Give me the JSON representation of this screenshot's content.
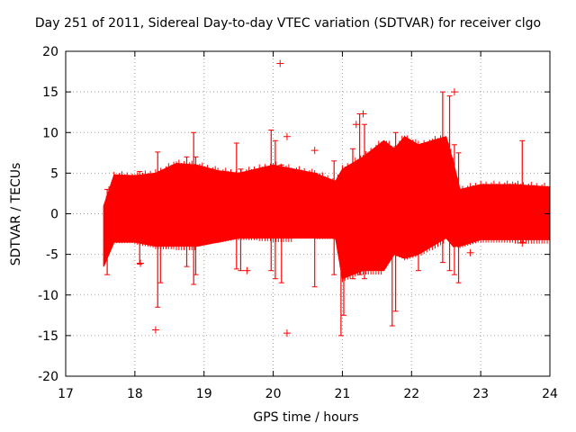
{
  "chart_data": {
    "type": "scatter",
    "title": "Day 251 of 2011, Sidereal Day-to-day VTEC variation (SDTVAR) for receiver clgo",
    "xlabel": "GPS time / hours",
    "ylabel": "SDTVAR / TECUs",
    "xlim": [
      17,
      24
    ],
    "ylim": [
      -20,
      20
    ],
    "x_ticks": [
      17,
      18,
      19,
      20,
      21,
      22,
      23,
      24
    ],
    "y_ticks": [
      -20,
      -15,
      -10,
      -5,
      0,
      5,
      10,
      15,
      20
    ],
    "x_tick_labels": [
      "17",
      "18",
      "19",
      "20",
      "21",
      "22",
      "23",
      "24"
    ],
    "y_tick_labels": [
      "-20",
      "-15",
      "-10",
      "-5",
      "0",
      "5",
      "10",
      "15",
      "20"
    ],
    "grid": true,
    "series_color": "#ff0000",
    "envelope": {
      "x": [
        17.55,
        17.7,
        18.0,
        18.3,
        18.6,
        18.9,
        19.2,
        19.5,
        19.8,
        20.0,
        20.3,
        20.6,
        20.9,
        21.0,
        21.3,
        21.6,
        21.75,
        21.9,
        22.1,
        22.3,
        22.5,
        22.6,
        22.7,
        23.0,
        23.5,
        24.0
      ],
      "upper": [
        1.0,
        4.8,
        4.7,
        5.0,
        6.2,
        6.0,
        5.3,
        5.0,
        5.6,
        6.0,
        5.5,
        5.0,
        4.0,
        5.5,
        7.0,
        9.0,
        8.0,
        9.5,
        8.5,
        9.0,
        9.5,
        6.5,
        3.0,
        3.6,
        3.6,
        3.3
      ],
      "lower": [
        -6.5,
        -3.5,
        -3.5,
        -4.0,
        -4.0,
        -4.0,
        -3.5,
        -3.0,
        -3.0,
        -3.0,
        -3.0,
        -3.0,
        -3.0,
        -8.0,
        -7.0,
        -7.0,
        -5.0,
        -5.5,
        -5.0,
        -4.0,
        -3.0,
        -4.0,
        -4.0,
        -3.2,
        -3.2,
        -3.2
      ]
    },
    "spikes": [
      {
        "x": 17.6,
        "lo": -7.5,
        "hi": 3.0
      },
      {
        "x": 18.07,
        "lo": -6.2,
        "hi": 5.2
      },
      {
        "x": 18.33,
        "lo": -11.5,
        "hi": 7.6
      },
      {
        "x": 18.37,
        "lo": -8.5,
        "hi": 5.0
      },
      {
        "x": 18.75,
        "lo": -6.5,
        "hi": 7.0
      },
      {
        "x": 18.85,
        "lo": -8.7,
        "hi": 10.0
      },
      {
        "x": 18.88,
        "lo": -7.5,
        "hi": 7.0
      },
      {
        "x": 19.47,
        "lo": -6.8,
        "hi": 8.7
      },
      {
        "x": 19.53,
        "lo": -7.0,
        "hi": 5.5
      },
      {
        "x": 19.97,
        "lo": -7.0,
        "hi": 10.3
      },
      {
        "x": 20.03,
        "lo": -8.0,
        "hi": 9.0
      },
      {
        "x": 20.12,
        "lo": -8.5,
        "hi": 6.0
      },
      {
        "x": 20.6,
        "lo": -9.0,
        "hi": 5.0
      },
      {
        "x": 20.88,
        "lo": -7.5,
        "hi": 6.5
      },
      {
        "x": 20.98,
        "lo": -15.0,
        "hi": 4.0
      },
      {
        "x": 21.02,
        "lo": -12.5,
        "hi": 5.0
      },
      {
        "x": 21.15,
        "lo": -8.0,
        "hi": 8.0
      },
      {
        "x": 21.25,
        "lo": -7.5,
        "hi": 12.3
      },
      {
        "x": 21.32,
        "lo": -8.0,
        "hi": 11.0
      },
      {
        "x": 21.72,
        "lo": -13.8,
        "hi": 6.0
      },
      {
        "x": 21.77,
        "lo": -12.0,
        "hi": 10.0
      },
      {
        "x": 22.1,
        "lo": -7.0,
        "hi": 8.0
      },
      {
        "x": 22.45,
        "lo": -6.0,
        "hi": 15.0
      },
      {
        "x": 22.55,
        "lo": -7.0,
        "hi": 14.5
      },
      {
        "x": 22.62,
        "lo": -7.5,
        "hi": 8.5
      },
      {
        "x": 22.68,
        "lo": -8.5,
        "hi": 7.5
      },
      {
        "x": 23.6,
        "lo": -3.5,
        "hi": 9.0
      }
    ],
    "outliers": [
      {
        "x": 20.1,
        "y": 18.5
      },
      {
        "x": 22.62,
        "y": 15.0
      },
      {
        "x": 21.3,
        "y": 12.3
      },
      {
        "x": 21.2,
        "y": 11.0
      },
      {
        "x": 20.2,
        "y": 9.5
      },
      {
        "x": 20.6,
        "y": 7.8
      },
      {
        "x": 18.3,
        "y": -14.3
      },
      {
        "x": 20.2,
        "y": -14.7
      },
      {
        "x": 18.08,
        "y": -6.1
      },
      {
        "x": 19.62,
        "y": -7.0
      },
      {
        "x": 23.6,
        "y": -3.6
      },
      {
        "x": 22.85,
        "y": -4.8
      }
    ]
  }
}
